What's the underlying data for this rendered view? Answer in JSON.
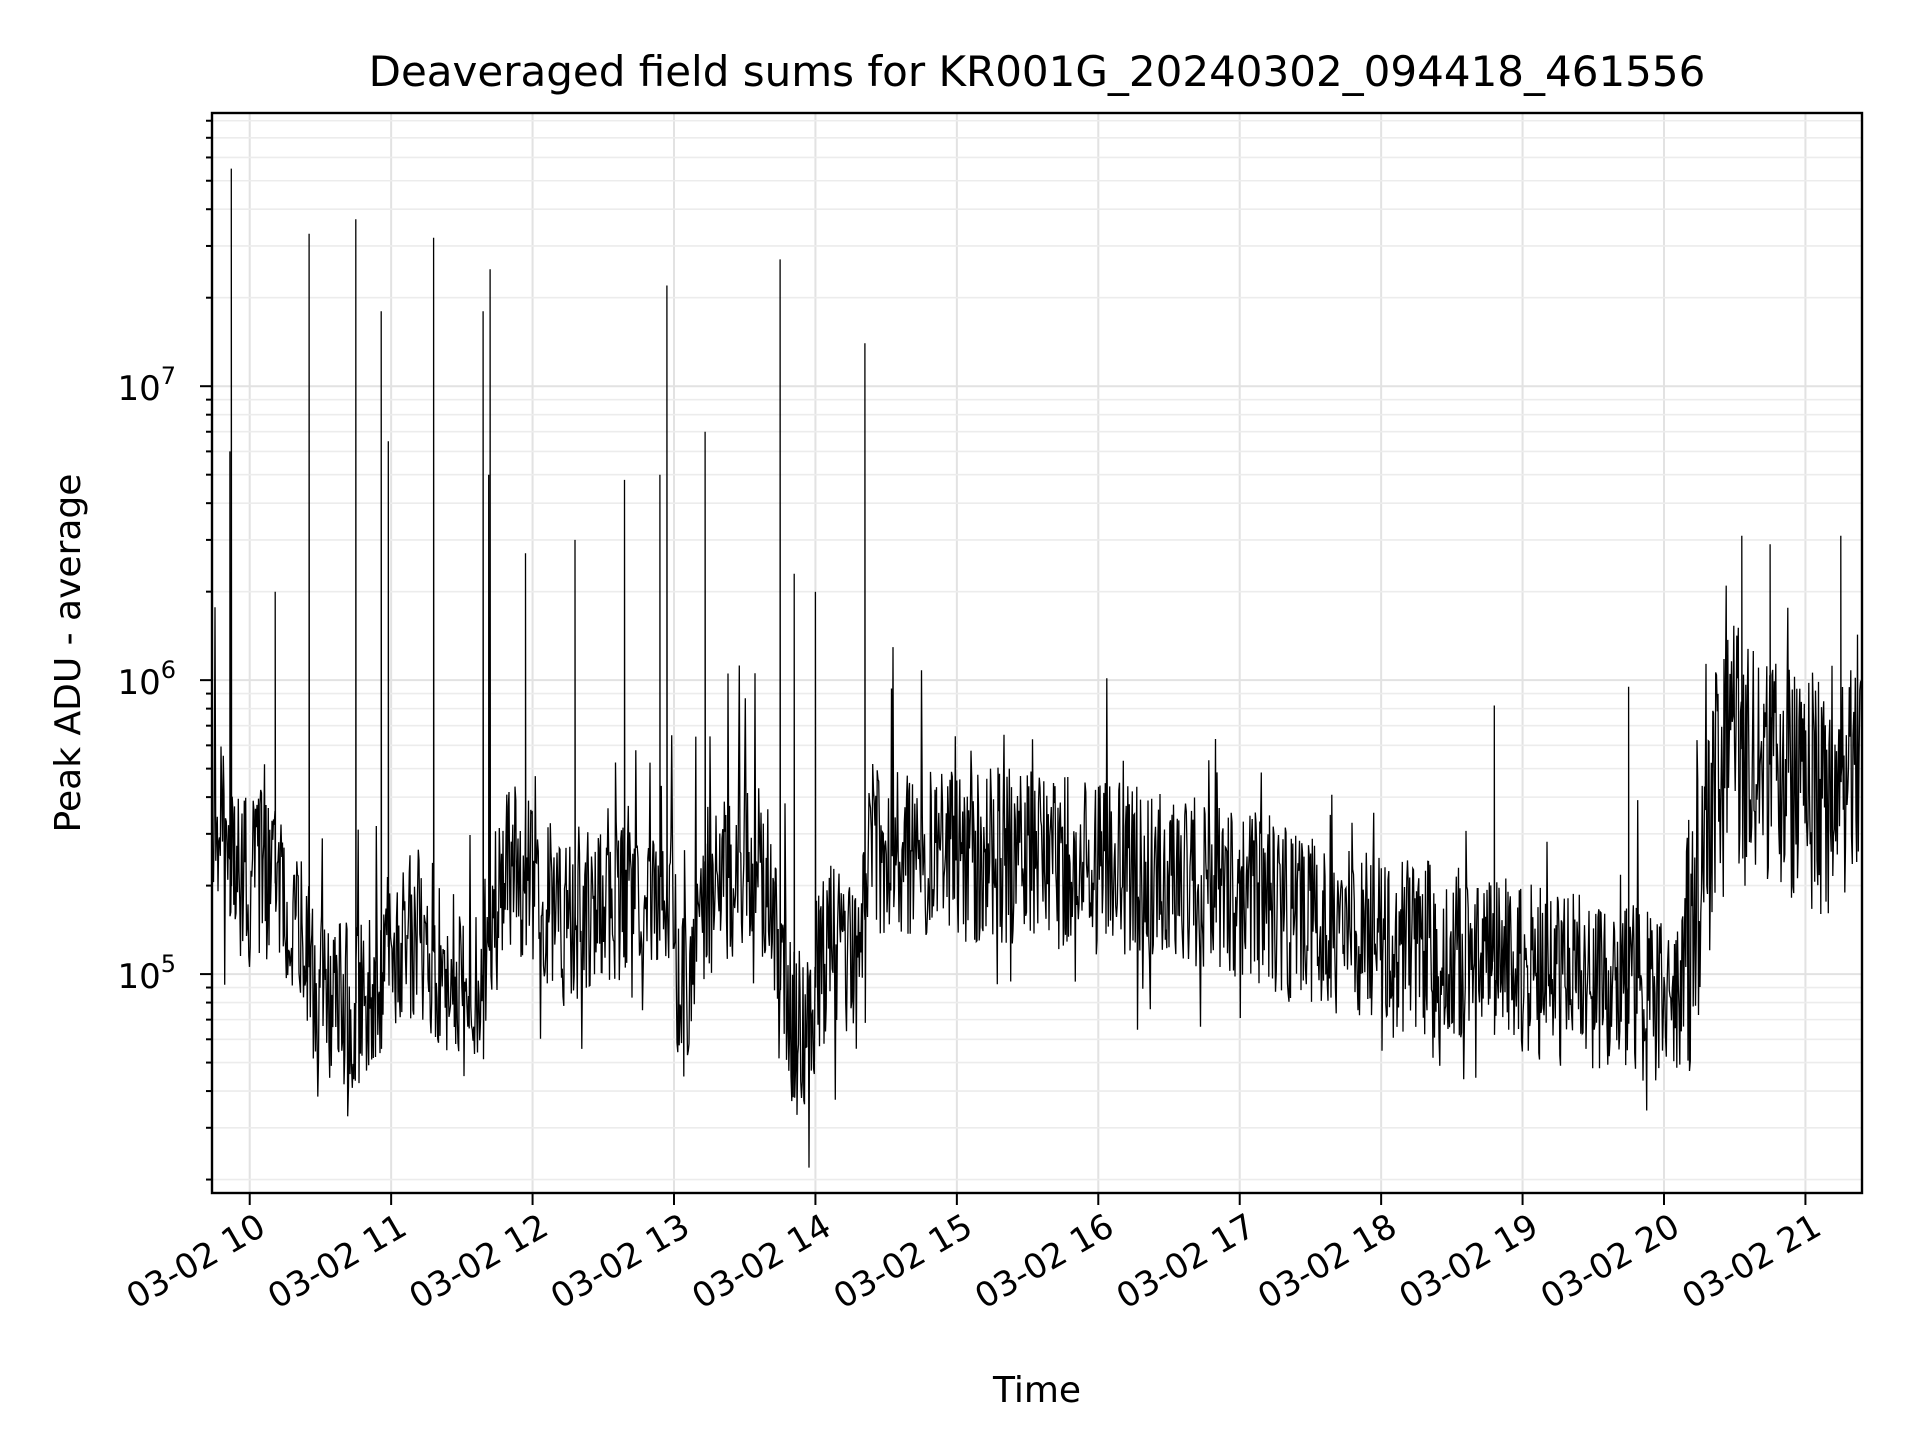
{
  "chart_data": {
    "type": "line",
    "title": "Deaveraged field sums for KR001G_20240302_094418_461556",
    "xlabel": "Time",
    "ylabel": "Peak ADU - average",
    "xscale": "time",
    "yscale": "log",
    "xlim": [
      "2024-03-02 09:44",
      "2024-03-02 21:24"
    ],
    "ylim": [
      18000,
      85000000
    ],
    "xtick_labels": [
      "03-02 10",
      "03-02 11",
      "03-02 12",
      "03-02 13",
      "03-02 14",
      "03-02 15",
      "03-02 16",
      "03-02 17",
      "03-02 18",
      "03-02 19",
      "03-02 20",
      "03-02 21"
    ],
    "xtick_hours": [
      10,
      11,
      12,
      13,
      14,
      15,
      16,
      17,
      18,
      19,
      20,
      21
    ],
    "ytick_labels": [
      {
        "base": "10",
        "exp": "5",
        "value": 100000
      },
      {
        "base": "10",
        "exp": "6",
        "value": 1000000
      },
      {
        "base": "10",
        "exp": "7",
        "value": 10000000
      }
    ],
    "grid": true,
    "legend": "none",
    "series": [
      {
        "color": "#000000",
        "x_hours": [
          9.733,
          9.85,
          9.97,
          10.1,
          10.25,
          10.4,
          10.55,
          10.7,
          10.85,
          11.0,
          11.15,
          11.3,
          11.45,
          11.55,
          11.65,
          11.8,
          11.95,
          12.1,
          12.25,
          12.4,
          12.55,
          12.7,
          12.85,
          12.95,
          13.05,
          13.2,
          13.35,
          13.5,
          13.65,
          13.75,
          13.9,
          14.05,
          14.2,
          14.3,
          14.4,
          14.6,
          14.8,
          15.0,
          15.2,
          15.4,
          15.6,
          15.8,
          16.0,
          16.2,
          16.4,
          16.6,
          16.8,
          17.0,
          17.2,
          17.4,
          17.6,
          17.8,
          18.0,
          18.2,
          18.4,
          18.6,
          18.8,
          19.0,
          19.2,
          19.4,
          19.6,
          19.8,
          19.95,
          20.1,
          20.2,
          20.35,
          20.5,
          20.65,
          20.8,
          20.95,
          21.1,
          21.25,
          21.4
        ],
        "values": [
          400000,
          250000,
          200000,
          220000,
          190000,
          110000,
          80000,
          75000,
          90000,
          130000,
          140000,
          120000,
          95000,
          80000,
          100000,
          220000,
          230000,
          180000,
          150000,
          170000,
          190000,
          200000,
          220000,
          230000,
          75000,
          180000,
          220000,
          230000,
          210000,
          90000,
          60000,
          110000,
          130000,
          90000,
          260000,
          270000,
          260000,
          250000,
          255000,
          250000,
          245000,
          240000,
          230000,
          225000,
          220000,
          215000,
          200000,
          190000,
          175000,
          160000,
          150000,
          140000,
          130000,
          125000,
          120000,
          115000,
          110000,
          105000,
          100000,
          95000,
          92000,
          90000,
          85000,
          80000,
          120000,
          450000,
          600000,
          550000,
          500000,
          450000,
          400000,
          450000,
          700000
        ],
        "spikes": [
          {
            "x_hour": 9.87,
            "value": 55000000
          },
          {
            "x_hour": 9.86,
            "value": 6000000
          },
          {
            "x_hour": 10.18,
            "value": 2000000
          },
          {
            "x_hour": 10.42,
            "value": 33000000
          },
          {
            "x_hour": 10.75,
            "value": 37000000
          },
          {
            "x_hour": 10.93,
            "value": 18000000
          },
          {
            "x_hour": 10.98,
            "value": 6500000
          },
          {
            "x_hour": 11.3,
            "value": 32000000
          },
          {
            "x_hour": 11.65,
            "value": 18000000
          },
          {
            "x_hour": 11.7,
            "value": 25000000
          },
          {
            "x_hour": 11.69,
            "value": 5000000
          },
          {
            "x_hour": 11.95,
            "value": 2700000
          },
          {
            "x_hour": 12.3,
            "value": 3000000
          },
          {
            "x_hour": 12.65,
            "value": 4800000
          },
          {
            "x_hour": 12.9,
            "value": 5000000
          },
          {
            "x_hour": 12.95,
            "value": 22000000
          },
          {
            "x_hour": 13.22,
            "value": 7000000
          },
          {
            "x_hour": 13.75,
            "value": 27000000
          },
          {
            "x_hour": 13.85,
            "value": 2300000
          },
          {
            "x_hour": 14.0,
            "value": 2000000
          },
          {
            "x_hour": 14.35,
            "value": 14000000
          },
          {
            "x_hour": 18.8,
            "value": 820000
          },
          {
            "x_hour": 19.75,
            "value": 950000
          },
          {
            "x_hour": 20.55,
            "value": 3100000
          },
          {
            "x_hour": 20.75,
            "value": 2900000
          },
          {
            "x_hour": 21.25,
            "value": 3100000
          }
        ]
      }
    ]
  }
}
